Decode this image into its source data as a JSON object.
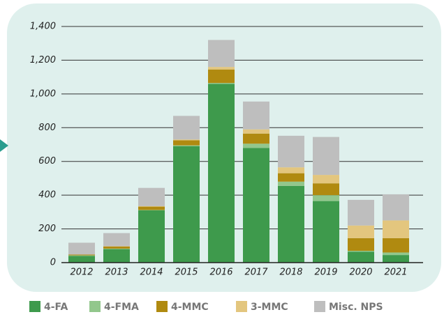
{
  "chart_data": {
    "type": "stacked_bar",
    "categories": [
      "2012",
      "2013",
      "2014",
      "2015",
      "2016",
      "2017",
      "2018",
      "2019",
      "2020",
      "2021"
    ],
    "series": [
      {
        "name": "4-FA",
        "color": "#3e9a4c",
        "values": [
          40,
          80,
          310,
          690,
          1060,
          680,
          455,
          365,
          65,
          45
        ]
      },
      {
        "name": "4-FMA",
        "color": "#92c78c",
        "values": [
          3,
          3,
          2,
          5,
          5,
          25,
          25,
          35,
          5,
          15
        ]
      },
      {
        "name": "4-MMC",
        "color": "#b08a10",
        "values": [
          5,
          12,
          20,
          30,
          80,
          60,
          50,
          70,
          75,
          85
        ]
      },
      {
        "name": "3-MMC",
        "color": "#e3c67e",
        "values": [
          0,
          2,
          3,
          5,
          15,
          25,
          35,
          50,
          75,
          105
        ]
      },
      {
        "name": "Misc. NPS",
        "color": "#bebebe",
        "values": [
          70,
          78,
          108,
          140,
          160,
          165,
          187,
          225,
          152,
          155
        ]
      }
    ],
    "ylim": [
      0,
      1400
    ],
    "yticks": [
      0,
      200,
      400,
      600,
      800,
      {
        "value": 1000,
        "label": "1,000"
      },
      {
        "value": 1200,
        "label": "1,200"
      },
      {
        "value": 1400,
        "label": "1,400"
      }
    ],
    "grid": true
  }
}
